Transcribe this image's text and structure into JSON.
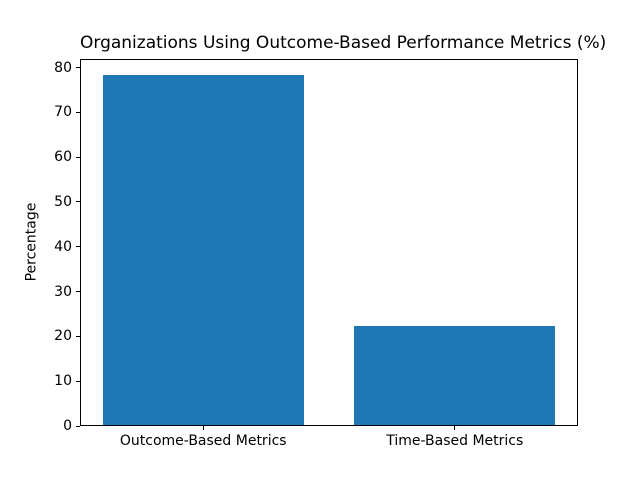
{
  "figure": {
    "background": "#ffffff",
    "text_color": "#000000"
  },
  "chart_data": {
    "type": "bar",
    "title": "Organizations Using Outcome-Based Performance Metrics (%)",
    "xlabel": "",
    "ylabel": "Percentage",
    "categories": [
      "Outcome-Based Metrics",
      "Time-Based Metrics"
    ],
    "values": [
      78,
      22
    ],
    "bar_color": "#1f77b4",
    "ylim": [
      0,
      81.9
    ],
    "yticks": [
      0,
      10,
      20,
      30,
      40,
      50,
      60,
      70,
      80
    ],
    "xlim": [
      -0.49,
      1.49
    ],
    "bar_width": 0.8,
    "grid": false,
    "legend": null
  }
}
